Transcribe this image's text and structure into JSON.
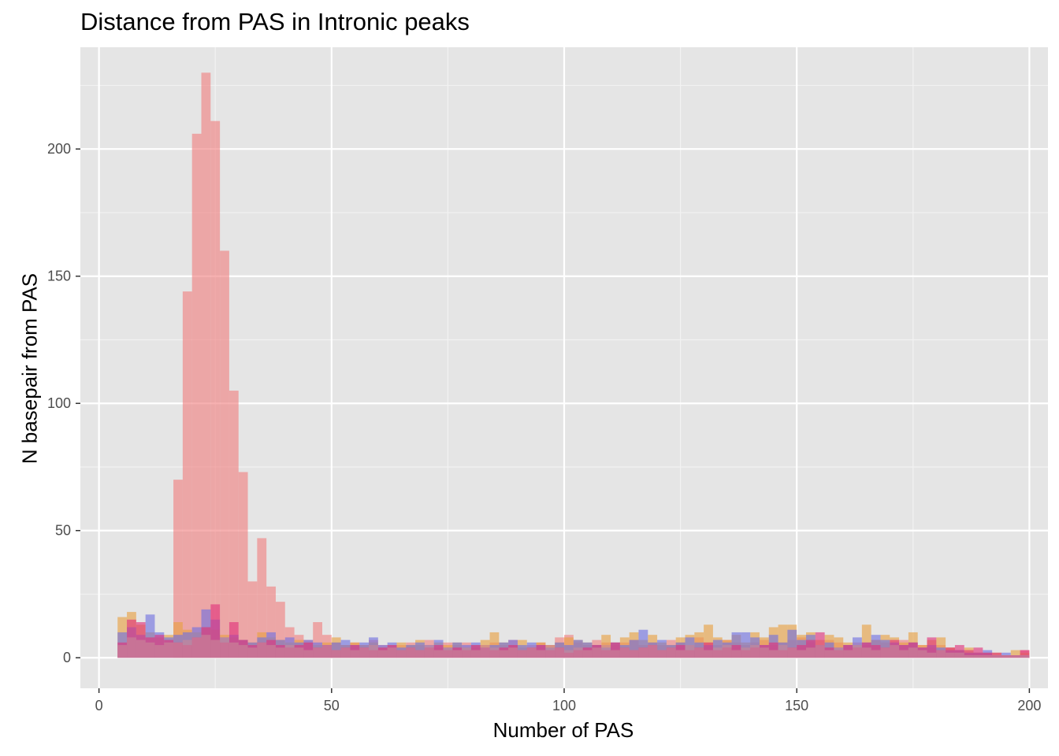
{
  "chart_data": {
    "type": "bar",
    "title": "Distance from PAS in Intronic peaks",
    "xlabel": "Number of PAS",
    "ylabel": "N basepair from PAS",
    "xlim": [
      -4,
      204
    ],
    "ylim": [
      -12,
      240
    ],
    "x_ticks": [
      0,
      50,
      100,
      150,
      200
    ],
    "y_ticks": [
      0,
      50,
      100,
      150,
      200
    ],
    "bin_width": 2,
    "grid": true,
    "background": "#e5e5e5",
    "series": [
      {
        "color": "#f08080",
        "x": [
          17,
          19,
          21,
          23,
          25,
          27,
          29,
          31,
          33,
          35,
          37,
          39,
          41,
          43,
          45,
          47,
          49,
          51,
          53,
          55,
          57,
          59,
          61,
          63,
          65,
          67,
          69,
          71,
          73,
          75,
          77,
          79,
          81,
          83,
          85,
          87,
          89,
          91,
          93,
          95,
          97,
          99,
          101,
          103,
          105,
          107,
          109,
          111,
          113,
          115,
          117,
          119,
          121,
          123,
          125,
          127,
          129,
          131,
          133,
          135,
          137,
          139,
          141,
          143,
          145,
          147,
          149,
          151,
          153,
          155,
          157,
          159,
          161,
          163,
          165,
          167,
          169,
          171,
          173,
          175,
          177,
          179,
          181,
          183,
          185,
          187,
          189,
          191,
          193,
          195,
          197,
          199
        ],
        "values": [
          70,
          144,
          206,
          230,
          211,
          160,
          105,
          73,
          30,
          47,
          28,
          22,
          12,
          9,
          7,
          14,
          9,
          6,
          5,
          6,
          5,
          7,
          5,
          4,
          5,
          6,
          5,
          7,
          4,
          6,
          5,
          6,
          4,
          5,
          6,
          5,
          7,
          4,
          5,
          6,
          5,
          8,
          9,
          6,
          5,
          7,
          6,
          5,
          6,
          7,
          5,
          6,
          5,
          7,
          6,
          5,
          8,
          6,
          5,
          7,
          6,
          5,
          6,
          7,
          5,
          6,
          7,
          8,
          6,
          5,
          7,
          6,
          5,
          6,
          5,
          7,
          6,
          5,
          7,
          6,
          5,
          4,
          5,
          4,
          3,
          2,
          2,
          2,
          1,
          1,
          1,
          3
        ]
      },
      {
        "color": "#e8a040",
        "x": [
          5,
          7,
          9,
          11,
          13,
          15,
          17,
          19,
          21,
          23,
          25,
          27,
          29,
          31,
          33,
          35,
          37,
          39,
          41,
          43,
          45,
          47,
          49,
          51,
          53,
          55,
          57,
          59,
          61,
          63,
          65,
          67,
          69,
          71,
          73,
          75,
          77,
          79,
          81,
          83,
          85,
          87,
          89,
          91,
          93,
          95,
          97,
          99,
          101,
          103,
          105,
          107,
          109,
          111,
          113,
          115,
          117,
          119,
          121,
          123,
          125,
          127,
          129,
          131,
          133,
          135,
          137,
          139,
          141,
          143,
          145,
          147,
          149,
          151,
          153,
          155,
          157,
          159,
          161,
          163,
          165,
          167,
          169,
          171,
          173,
          175,
          177,
          179,
          181,
          183,
          185,
          187,
          189,
          191,
          193,
          195,
          197,
          199
        ],
        "values": [
          16,
          18,
          13,
          10,
          8,
          9,
          14,
          11,
          10,
          12,
          11,
          9,
          8,
          7,
          6,
          10,
          8,
          7,
          6,
          7,
          6,
          5,
          6,
          8,
          5,
          6,
          5,
          6,
          4,
          5,
          6,
          5,
          7,
          4,
          6,
          5,
          6,
          4,
          5,
          7,
          10,
          6,
          5,
          7,
          4,
          6,
          5,
          6,
          8,
          7,
          6,
          5,
          9,
          6,
          8,
          10,
          7,
          9,
          6,
          5,
          8,
          9,
          10,
          13,
          8,
          7,
          9,
          6,
          10,
          8,
          12,
          13,
          13,
          9,
          10,
          7,
          9,
          8,
          6,
          5,
          13,
          7,
          9,
          8,
          6,
          10,
          5,
          7,
          8,
          4,
          3,
          4,
          2,
          2,
          2,
          1,
          3,
          2
        ]
      },
      {
        "color": "#7070e0",
        "x": [
          5,
          7,
          9,
          11,
          13,
          15,
          17,
          19,
          21,
          23,
          25,
          27,
          29,
          31,
          33,
          35,
          37,
          39,
          41,
          43,
          45,
          47,
          49,
          51,
          53,
          55,
          57,
          59,
          61,
          63,
          65,
          67,
          69,
          71,
          73,
          75,
          77,
          79,
          81,
          83,
          85,
          87,
          89,
          91,
          93,
          95,
          97,
          99,
          101,
          103,
          105,
          107,
          109,
          111,
          113,
          115,
          117,
          119,
          121,
          123,
          125,
          127,
          129,
          131,
          133,
          135,
          137,
          139,
          141,
          143,
          145,
          147,
          149,
          151,
          153,
          155,
          157,
          159,
          161,
          163,
          165,
          167,
          169,
          171,
          173,
          175,
          177,
          179,
          181,
          183,
          185,
          187,
          189,
          191,
          193,
          195,
          197,
          199
        ],
        "values": [
          10,
          12,
          9,
          17,
          10,
          8,
          9,
          10,
          12,
          19,
          15,
          8,
          9,
          7,
          6,
          8,
          10,
          7,
          8,
          6,
          7,
          6,
          5,
          6,
          7,
          5,
          6,
          8,
          5,
          6,
          4,
          5,
          6,
          5,
          7,
          4,
          6,
          5,
          6,
          4,
          5,
          6,
          7,
          5,
          6,
          5,
          4,
          6,
          5,
          7,
          6,
          5,
          4,
          6,
          5,
          7,
          11,
          6,
          7,
          5,
          6,
          8,
          6,
          5,
          7,
          6,
          10,
          10,
          8,
          5,
          9,
          6,
          11,
          7,
          9,
          5,
          6,
          4,
          5,
          8,
          6,
          9,
          7,
          6,
          5,
          6,
          4,
          5,
          4,
          3,
          3,
          2,
          2,
          3,
          1,
          2,
          1,
          1
        ]
      },
      {
        "color": "#e0307a",
        "x": [
          5,
          7,
          9,
          11,
          13,
          15,
          17,
          19,
          21,
          23,
          25,
          27,
          29,
          31,
          33,
          35,
          37,
          39,
          41,
          43,
          45,
          47,
          49,
          51,
          53,
          55,
          57,
          59,
          61,
          63,
          65,
          67,
          69,
          71,
          73,
          75,
          77,
          79,
          81,
          83,
          85,
          87,
          89,
          91,
          93,
          95,
          97,
          99,
          101,
          103,
          105,
          107,
          109,
          111,
          113,
          115,
          117,
          119,
          121,
          123,
          125,
          127,
          129,
          131,
          133,
          135,
          137,
          139,
          141,
          143,
          145,
          147,
          149,
          151,
          153,
          155,
          157,
          159,
          161,
          163,
          165,
          167,
          169,
          171,
          173,
          175,
          177,
          179,
          181,
          183,
          185,
          187,
          189,
          191,
          193,
          195,
          197,
          199
        ],
        "values": [
          6,
          15,
          14,
          8,
          9,
          7,
          6,
          5,
          8,
          12,
          21,
          6,
          14,
          7,
          5,
          6,
          7,
          5,
          4,
          5,
          6,
          4,
          5,
          3,
          4,
          5,
          4,
          3,
          4,
          5,
          3,
          4,
          3,
          4,
          5,
          3,
          4,
          3,
          5,
          4,
          3,
          4,
          5,
          3,
          4,
          5,
          3,
          4,
          2,
          3,
          4,
          5,
          3,
          6,
          4,
          3,
          4,
          5,
          3,
          4,
          5,
          3,
          4,
          6,
          3,
          4,
          5,
          3,
          4,
          5,
          6,
          3,
          4,
          5,
          7,
          10,
          4,
          3,
          5,
          4,
          6,
          5,
          4,
          7,
          5,
          6,
          4,
          8,
          3,
          4,
          5,
          3,
          4,
          2,
          2,
          1,
          1,
          3
        ]
      },
      {
        "color": "#c88898",
        "x": [
          5,
          7,
          9,
          11,
          13,
          15,
          17,
          19,
          21,
          23,
          25,
          27,
          29,
          31,
          33,
          35,
          37,
          39,
          41,
          43,
          45,
          47,
          49,
          51,
          53,
          55,
          57,
          59,
          61,
          63,
          65,
          67,
          69,
          71,
          73,
          75,
          77,
          79,
          81,
          83,
          85,
          87,
          89,
          91,
          93,
          95,
          97,
          99,
          101,
          103,
          105,
          107,
          109,
          111,
          113,
          115,
          117,
          119,
          121,
          123,
          125,
          127,
          129,
          131,
          133,
          135,
          137,
          139,
          141,
          143,
          145,
          147,
          149,
          151,
          153,
          155,
          157,
          159,
          161,
          163,
          165,
          167,
          169,
          171,
          173,
          175,
          177,
          179,
          181,
          183,
          185,
          187,
          189,
          191,
          193,
          195,
          197,
          199
        ],
        "values": [
          5,
          8,
          7,
          6,
          5,
          6,
          6,
          7,
          8,
          9,
          7,
          8,
          6,
          5,
          4,
          6,
          5,
          4,
          5,
          4,
          3,
          4,
          5,
          3,
          4,
          3,
          4,
          5,
          3,
          4,
          3,
          4,
          3,
          5,
          3,
          4,
          3,
          4,
          3,
          5,
          4,
          3,
          4,
          3,
          4,
          3,
          5,
          4,
          3,
          4,
          3,
          4,
          5,
          3,
          4,
          3,
          4,
          5,
          3,
          4,
          3,
          5,
          4,
          3,
          4,
          5,
          3,
          4,
          5,
          4,
          3,
          5,
          4,
          3,
          4,
          5,
          3,
          4,
          3,
          5,
          4,
          3,
          4,
          5,
          3,
          4,
          3,
          2,
          3,
          2,
          2,
          1,
          1,
          1,
          1,
          1,
          1,
          1
        ]
      }
    ]
  }
}
